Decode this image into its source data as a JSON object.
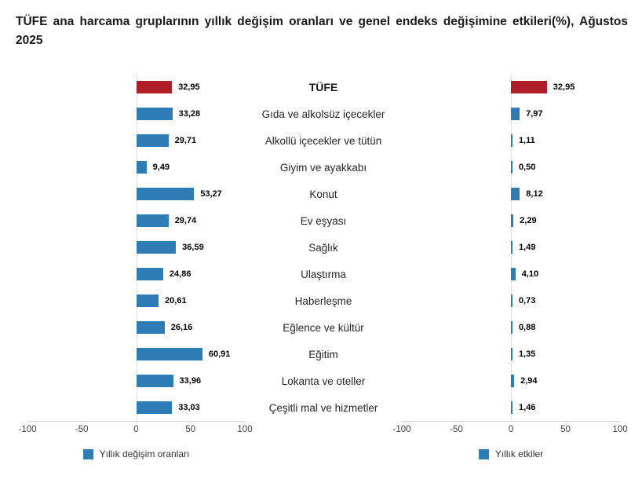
{
  "title": "TÜFE ana harcama gruplarının yıllık değişim oranları ve genel endeks değişimine etkileri(%), Ağustos 2025",
  "colors": {
    "bar_blue": "#2e7cb5",
    "bar_red": "#b01e28",
    "gridline": "#e2e2e2",
    "axis_line": "#d9d9d9"
  },
  "axis": {
    "ticks": [
      "-100",
      "-50",
      "0",
      "50",
      "100"
    ],
    "min": -100,
    "max": 100
  },
  "chart_data": {
    "type": "bar",
    "orientation": "horizontal",
    "title": "TÜFE ana harcama gruplarının yıllık değişim oranları ve genel endeks değişimine etkileri(%), Ağustos 2025",
    "xlim": [
      -100,
      100
    ],
    "grid": "zero-line-only",
    "legend_position": "bottom",
    "highlight_category": "TÜFE",
    "categories": [
      "TÜFE",
      "Gıda ve alkolsüz içecekler",
      "Alkollü içecekler ve tütün",
      "Giyim ve ayakkabı",
      "Konut",
      "Ev eşyası",
      "Sağlık",
      "Ulaştırma",
      "Haberleşme",
      "Eğlence ve kültür",
      "Eğitim",
      "Lokanta ve oteller",
      "Çeşitli mal ve hizmetler"
    ],
    "series": [
      {
        "name": "Yıllık değişim oranları",
        "values": [
          32.95,
          33.28,
          29.71,
          9.49,
          53.27,
          29.74,
          36.59,
          24.86,
          20.61,
          26.16,
          60.91,
          33.96,
          33.03
        ],
        "labels": [
          "32,95",
          "33,28",
          "29,71",
          "9,49",
          "53,27",
          "29,74",
          "36,59",
          "24,86",
          "20,61",
          "26,16",
          "60,91",
          "33,96",
          "33,03"
        ]
      },
      {
        "name": "Yıllık etkiler",
        "values": [
          32.95,
          7.97,
          1.11,
          0.5,
          8.12,
          2.29,
          1.49,
          4.1,
          0.73,
          0.88,
          1.35,
          2.94,
          1.46
        ],
        "labels": [
          "32,95",
          "7,97",
          "1,11",
          "0,50",
          "8,12",
          "2,29",
          "1,49",
          "4,10",
          "0,73",
          "0,88",
          "1,35",
          "2,94",
          "1,46"
        ]
      }
    ]
  }
}
